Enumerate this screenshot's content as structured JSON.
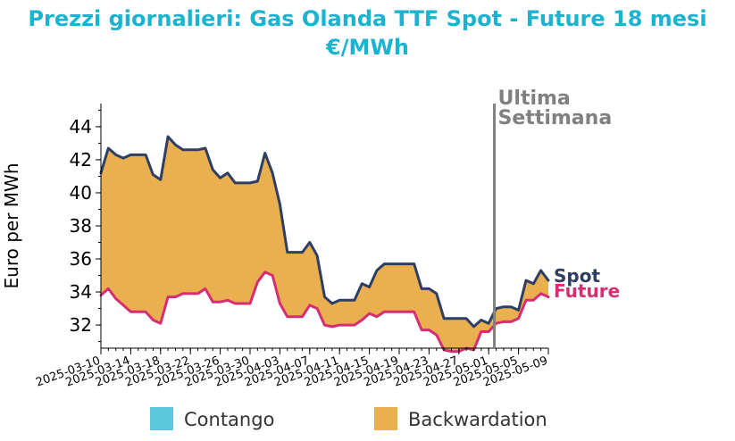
{
  "title_line1": "Prezzi giornalieri: Gas Olanda TTF Spot - Future 18 mesi",
  "title_line2": "€/MWh",
  "chart_data": {
    "type": "area",
    "title": "Prezzi giornalieri: Gas Olanda TTF Spot - Future 18 mesi €/MWh",
    "ylabel": "Euro per MWh",
    "xlabel": "",
    "ylim": [
      30.6,
      45.4
    ],
    "yticks": [
      32,
      34,
      36,
      38,
      40,
      42,
      44
    ],
    "xlim": [
      "2025-03-10",
      "2025-05-09"
    ],
    "xticks": [
      "2025-03-10",
      "2025-03-14",
      "2025-03-18",
      "2025-03-22",
      "2025-03-26",
      "2025-03-30",
      "2025-04-03",
      "2025-04-07",
      "2025-04-11",
      "2025-04-15",
      "2025-04-19",
      "2025-04-23",
      "2025-04-27",
      "2025-05-01",
      "2025-05-05",
      "2025-05-09"
    ],
    "x": [
      "2025-03-10",
      "2025-03-11",
      "2025-03-12",
      "2025-03-13",
      "2025-03-14",
      "2025-03-15",
      "2025-03-16",
      "2025-03-17",
      "2025-03-18",
      "2025-03-19",
      "2025-03-20",
      "2025-03-21",
      "2025-03-22",
      "2025-03-23",
      "2025-03-24",
      "2025-03-25",
      "2025-03-26",
      "2025-03-27",
      "2025-03-28",
      "2025-03-29",
      "2025-03-30",
      "2025-03-31",
      "2025-04-01",
      "2025-04-02",
      "2025-04-03",
      "2025-04-04",
      "2025-04-05",
      "2025-04-06",
      "2025-04-07",
      "2025-04-08",
      "2025-04-09",
      "2025-04-10",
      "2025-04-11",
      "2025-04-12",
      "2025-04-13",
      "2025-04-14",
      "2025-04-15",
      "2025-04-16",
      "2025-04-17",
      "2025-04-18",
      "2025-04-19",
      "2025-04-20",
      "2025-04-21",
      "2025-04-22",
      "2025-04-23",
      "2025-04-24",
      "2025-04-25",
      "2025-04-26",
      "2025-04-27",
      "2025-04-28",
      "2025-04-29",
      "2025-04-30",
      "2025-05-01",
      "2025-05-02",
      "2025-05-03",
      "2025-05-04",
      "2025-05-05",
      "2025-05-06",
      "2025-05-07",
      "2025-05-08",
      "2025-05-09"
    ],
    "series": [
      {
        "name": "Spot",
        "color": "#2E3F63",
        "values": [
          41.2,
          42.7,
          42.3,
          42.1,
          42.3,
          42.3,
          42.3,
          41.1,
          40.8,
          43.4,
          42.9,
          42.6,
          42.6,
          42.6,
          42.7,
          41.4,
          40.9,
          41.2,
          40.6,
          40.6,
          40.6,
          40.7,
          42.4,
          41.2,
          39.3,
          36.4,
          36.4,
          36.4,
          37.0,
          36.2,
          33.7,
          33.3,
          33.5,
          33.5,
          33.5,
          34.5,
          34.3,
          35.3,
          35.7,
          35.7,
          35.7,
          35.7,
          35.7,
          34.2,
          34.2,
          33.9,
          32.4,
          32.4,
          32.4,
          32.4,
          31.9,
          32.3,
          32.1,
          33.0,
          33.1,
          33.1,
          32.9,
          34.7,
          34.5,
          35.3,
          34.7
        ]
      },
      {
        "name": "Future",
        "color": "#D52E73",
        "values": [
          33.8,
          34.2,
          33.6,
          33.2,
          32.8,
          32.8,
          32.8,
          32.3,
          32.1,
          33.7,
          33.7,
          33.9,
          33.9,
          33.9,
          34.2,
          33.4,
          33.4,
          33.5,
          33.3,
          33.3,
          33.3,
          34.6,
          35.2,
          35.0,
          33.3,
          32.5,
          32.5,
          32.5,
          33.2,
          33.0,
          32.0,
          31.9,
          32.0,
          32.0,
          32.0,
          32.3,
          32.7,
          32.5,
          32.8,
          32.8,
          32.8,
          32.8,
          32.8,
          31.7,
          31.7,
          31.4,
          30.5,
          30.4,
          30.4,
          30.6,
          30.5,
          31.6,
          31.6,
          32.1,
          32.2,
          32.2,
          32.4,
          33.5,
          33.5,
          33.9,
          33.7
        ]
      }
    ],
    "fill_colors": {
      "Contango": "#5BC8DC",
      "Backwardation": "#EAAF4F"
    },
    "legend": {
      "placement": "bottom",
      "items": [
        "Contango",
        "Backwardation"
      ]
    },
    "annotation": {
      "lines": [
        "Ultima",
        "Settimana"
      ],
      "date": "2025-05-02",
      "color": "#808080"
    },
    "grid": false
  }
}
